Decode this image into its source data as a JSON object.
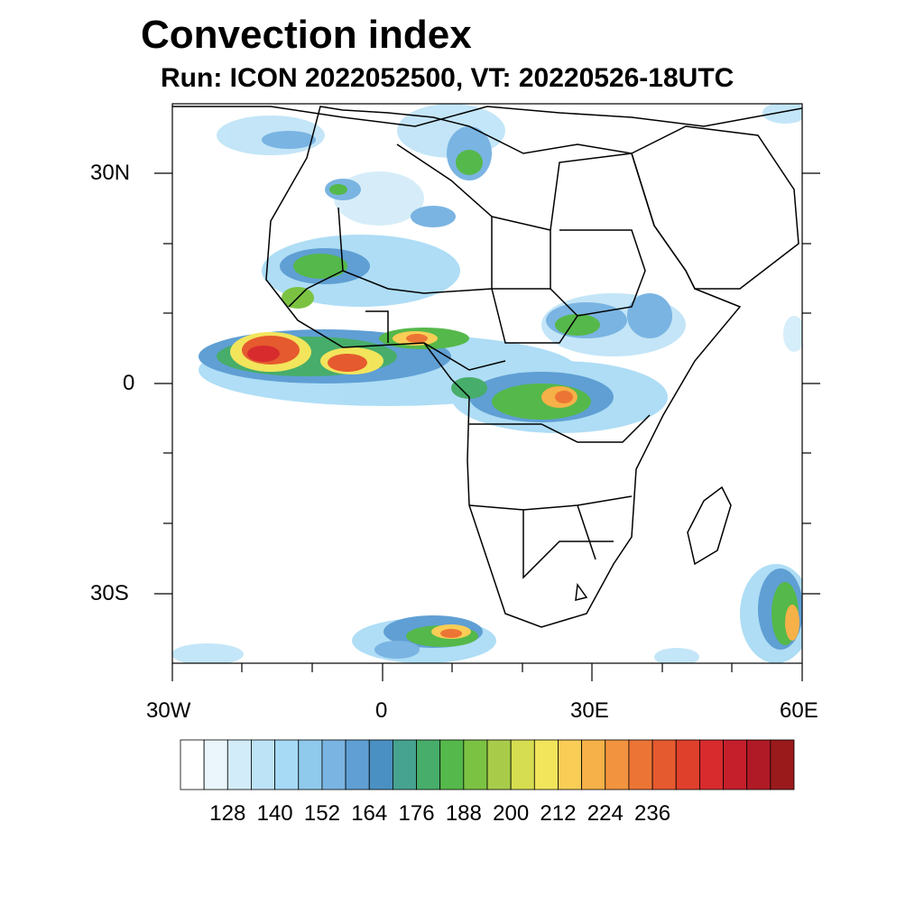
{
  "title": "Convection index",
  "subtitle": "Run: ICON 2022052500,  VT: 20220526-18UTC",
  "map": {
    "lon_range": [
      -30,
      60
    ],
    "lat_range": [
      -40,
      40
    ],
    "lat_ticks": [
      "30N",
      "0",
      "30S"
    ],
    "lon_ticks": [
      "30W",
      "0",
      "30E",
      "60E"
    ],
    "coastline_color": "#000000",
    "ocean_color": "#ffffff"
  },
  "colorbar": {
    "colors": [
      "#ffffff",
      "#eaf6fc",
      "#d2ecf9",
      "#bde3f7",
      "#a6daf5",
      "#8fc9ec",
      "#7ab4e2",
      "#5f9fd4",
      "#4a90c2",
      "#46a390",
      "#47ad6a",
      "#55b84a",
      "#7cc242",
      "#a8cc4a",
      "#d6dd50",
      "#f2e55c",
      "#f9cd56",
      "#f6b148",
      "#f2933f",
      "#ec7535",
      "#e55a2e",
      "#df402b",
      "#d72b2e",
      "#c51f2c",
      "#b01a26",
      "#9a1a1c"
    ],
    "tick_labels": [
      "128",
      "140",
      "152",
      "164",
      "176",
      "188",
      "200",
      "212",
      "224",
      "236"
    ]
  }
}
